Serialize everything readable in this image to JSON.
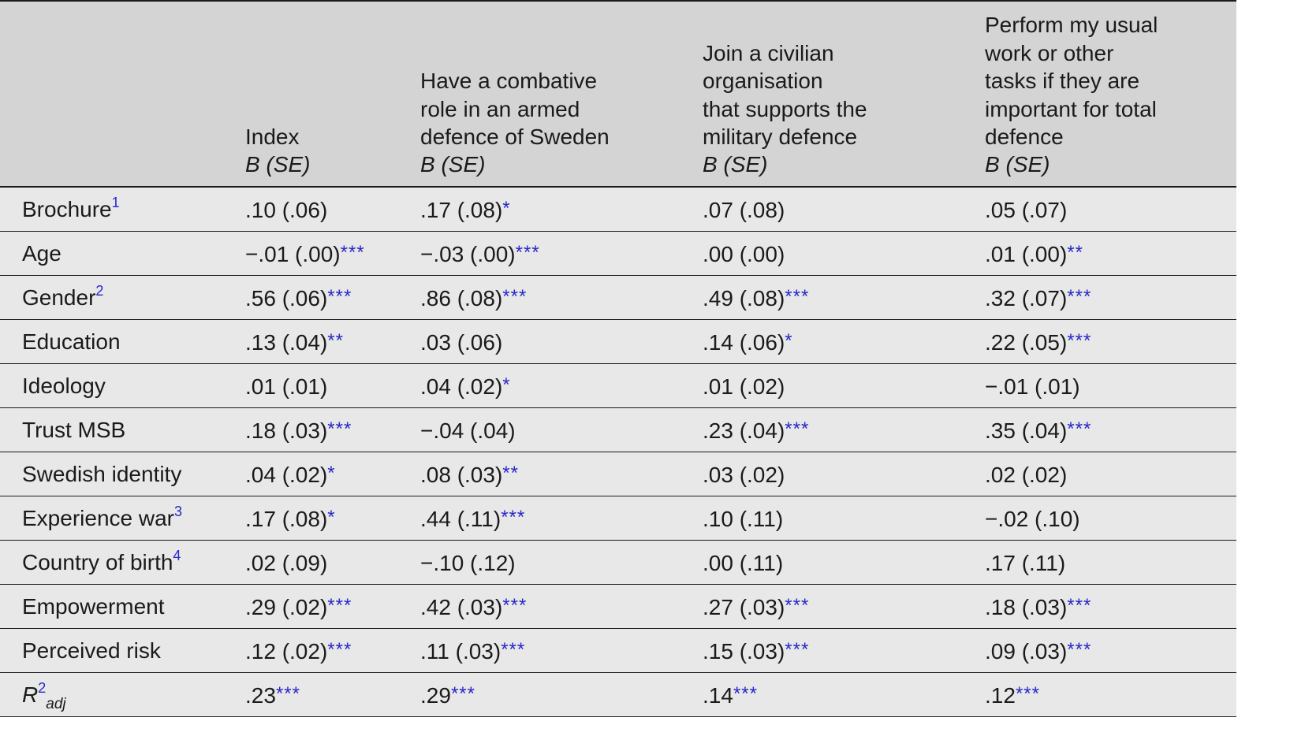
{
  "header": {
    "columns": [
      "",
      "Index",
      "Have a combative\nrole in an armed\ndefence of Sweden",
      "Join a civilian\norganisation\nthat supports the\nmilitary defence",
      "Perform my usual\nwork or other\ntasks if they are\nimportant for total\ndefence"
    ],
    "sub": [
      "",
      "B (SE)",
      "B (SE)",
      "B (SE)",
      "B (SE)"
    ]
  },
  "rows": [
    {
      "label": "Brochure",
      "fn": "1",
      "cells": [
        {
          "v": ".10 (.06)",
          "s": ""
        },
        {
          "v": ".17 (.08)",
          "s": "*"
        },
        {
          "v": ".07 (.08)",
          "s": ""
        },
        {
          "v": ".05 (.07)",
          "s": ""
        }
      ]
    },
    {
      "label": "Age",
      "fn": "",
      "cells": [
        {
          "v": "−.01 (.00)",
          "s": "***"
        },
        {
          "v": "−.03 (.00)",
          "s": "***"
        },
        {
          "v": ".00 (.00)",
          "s": ""
        },
        {
          "v": ".01 (.00)",
          "s": "**"
        }
      ]
    },
    {
      "label": "Gender",
      "fn": "2",
      "cells": [
        {
          "v": ".56 (.06)",
          "s": "***"
        },
        {
          "v": ".86 (.08)",
          "s": "***"
        },
        {
          "v": ".49 (.08)",
          "s": "***"
        },
        {
          "v": ".32 (.07)",
          "s": "***"
        }
      ]
    },
    {
      "label": "Education",
      "fn": "",
      "cells": [
        {
          "v": ".13 (.04)",
          "s": "**"
        },
        {
          "v": ".03 (.06)",
          "s": ""
        },
        {
          "v": ".14 (.06)",
          "s": "*"
        },
        {
          "v": ".22 (.05)",
          "s": "***"
        }
      ]
    },
    {
      "label": "Ideology",
      "fn": "",
      "cells": [
        {
          "v": ".01 (.01)",
          "s": ""
        },
        {
          "v": ".04 (.02)",
          "s": "*"
        },
        {
          "v": ".01 (.02)",
          "s": ""
        },
        {
          "v": "−.01 (.01)",
          "s": ""
        }
      ]
    },
    {
      "label": "Trust MSB",
      "fn": "",
      "cells": [
        {
          "v": ".18 (.03)",
          "s": "***"
        },
        {
          "v": "−.04 (.04)",
          "s": ""
        },
        {
          "v": ".23 (.04)",
          "s": "***"
        },
        {
          "v": ".35 (.04)",
          "s": "***"
        }
      ]
    },
    {
      "label": "Swedish identity",
      "fn": "",
      "cells": [
        {
          "v": ".04 (.02)",
          "s": "*"
        },
        {
          "v": ".08 (.03)",
          "s": "**"
        },
        {
          "v": ".03 (.02)",
          "s": ""
        },
        {
          "v": ".02 (.02)",
          "s": ""
        }
      ]
    },
    {
      "label": "Experience war",
      "fn": "3",
      "cells": [
        {
          "v": ".17 (.08)",
          "s": "*"
        },
        {
          "v": ".44 (.11)",
          "s": "***"
        },
        {
          "v": ".10 (.11)",
          "s": ""
        },
        {
          "v": "−.02 (.10)",
          "s": ""
        }
      ]
    },
    {
      "label": "Country of birth",
      "fn": "4",
      "cells": [
        {
          "v": ".02 (.09)",
          "s": ""
        },
        {
          "v": "−.10 (.12)",
          "s": ""
        },
        {
          "v": ".00 (.11)",
          "s": ""
        },
        {
          "v": ".17 (.11)",
          "s": ""
        }
      ]
    },
    {
      "label": "Empowerment",
      "fn": "",
      "cells": [
        {
          "v": ".29 (.02)",
          "s": "***"
        },
        {
          "v": ".42 (.03)",
          "s": "***"
        },
        {
          "v": ".27 (.03)",
          "s": "***"
        },
        {
          "v": ".18 (.03)",
          "s": "***"
        }
      ]
    },
    {
      "label": "Perceived risk",
      "fn": "",
      "cells": [
        {
          "v": ".12 (.02)",
          "s": "***"
        },
        {
          "v": ".11 (.03)",
          "s": "***"
        },
        {
          "v": ".15 (.03)",
          "s": "***"
        },
        {
          "v": ".09 (.03)",
          "s": "***"
        }
      ]
    }
  ],
  "r2": {
    "base": "R",
    "sup": "2",
    "sub": "adj",
    "cells": [
      {
        "v": ".23",
        "s": "***"
      },
      {
        "v": ".29",
        "s": "***"
      },
      {
        "v": ".14",
        "s": "***"
      },
      {
        "v": ".12",
        "s": "***"
      }
    ]
  }
}
